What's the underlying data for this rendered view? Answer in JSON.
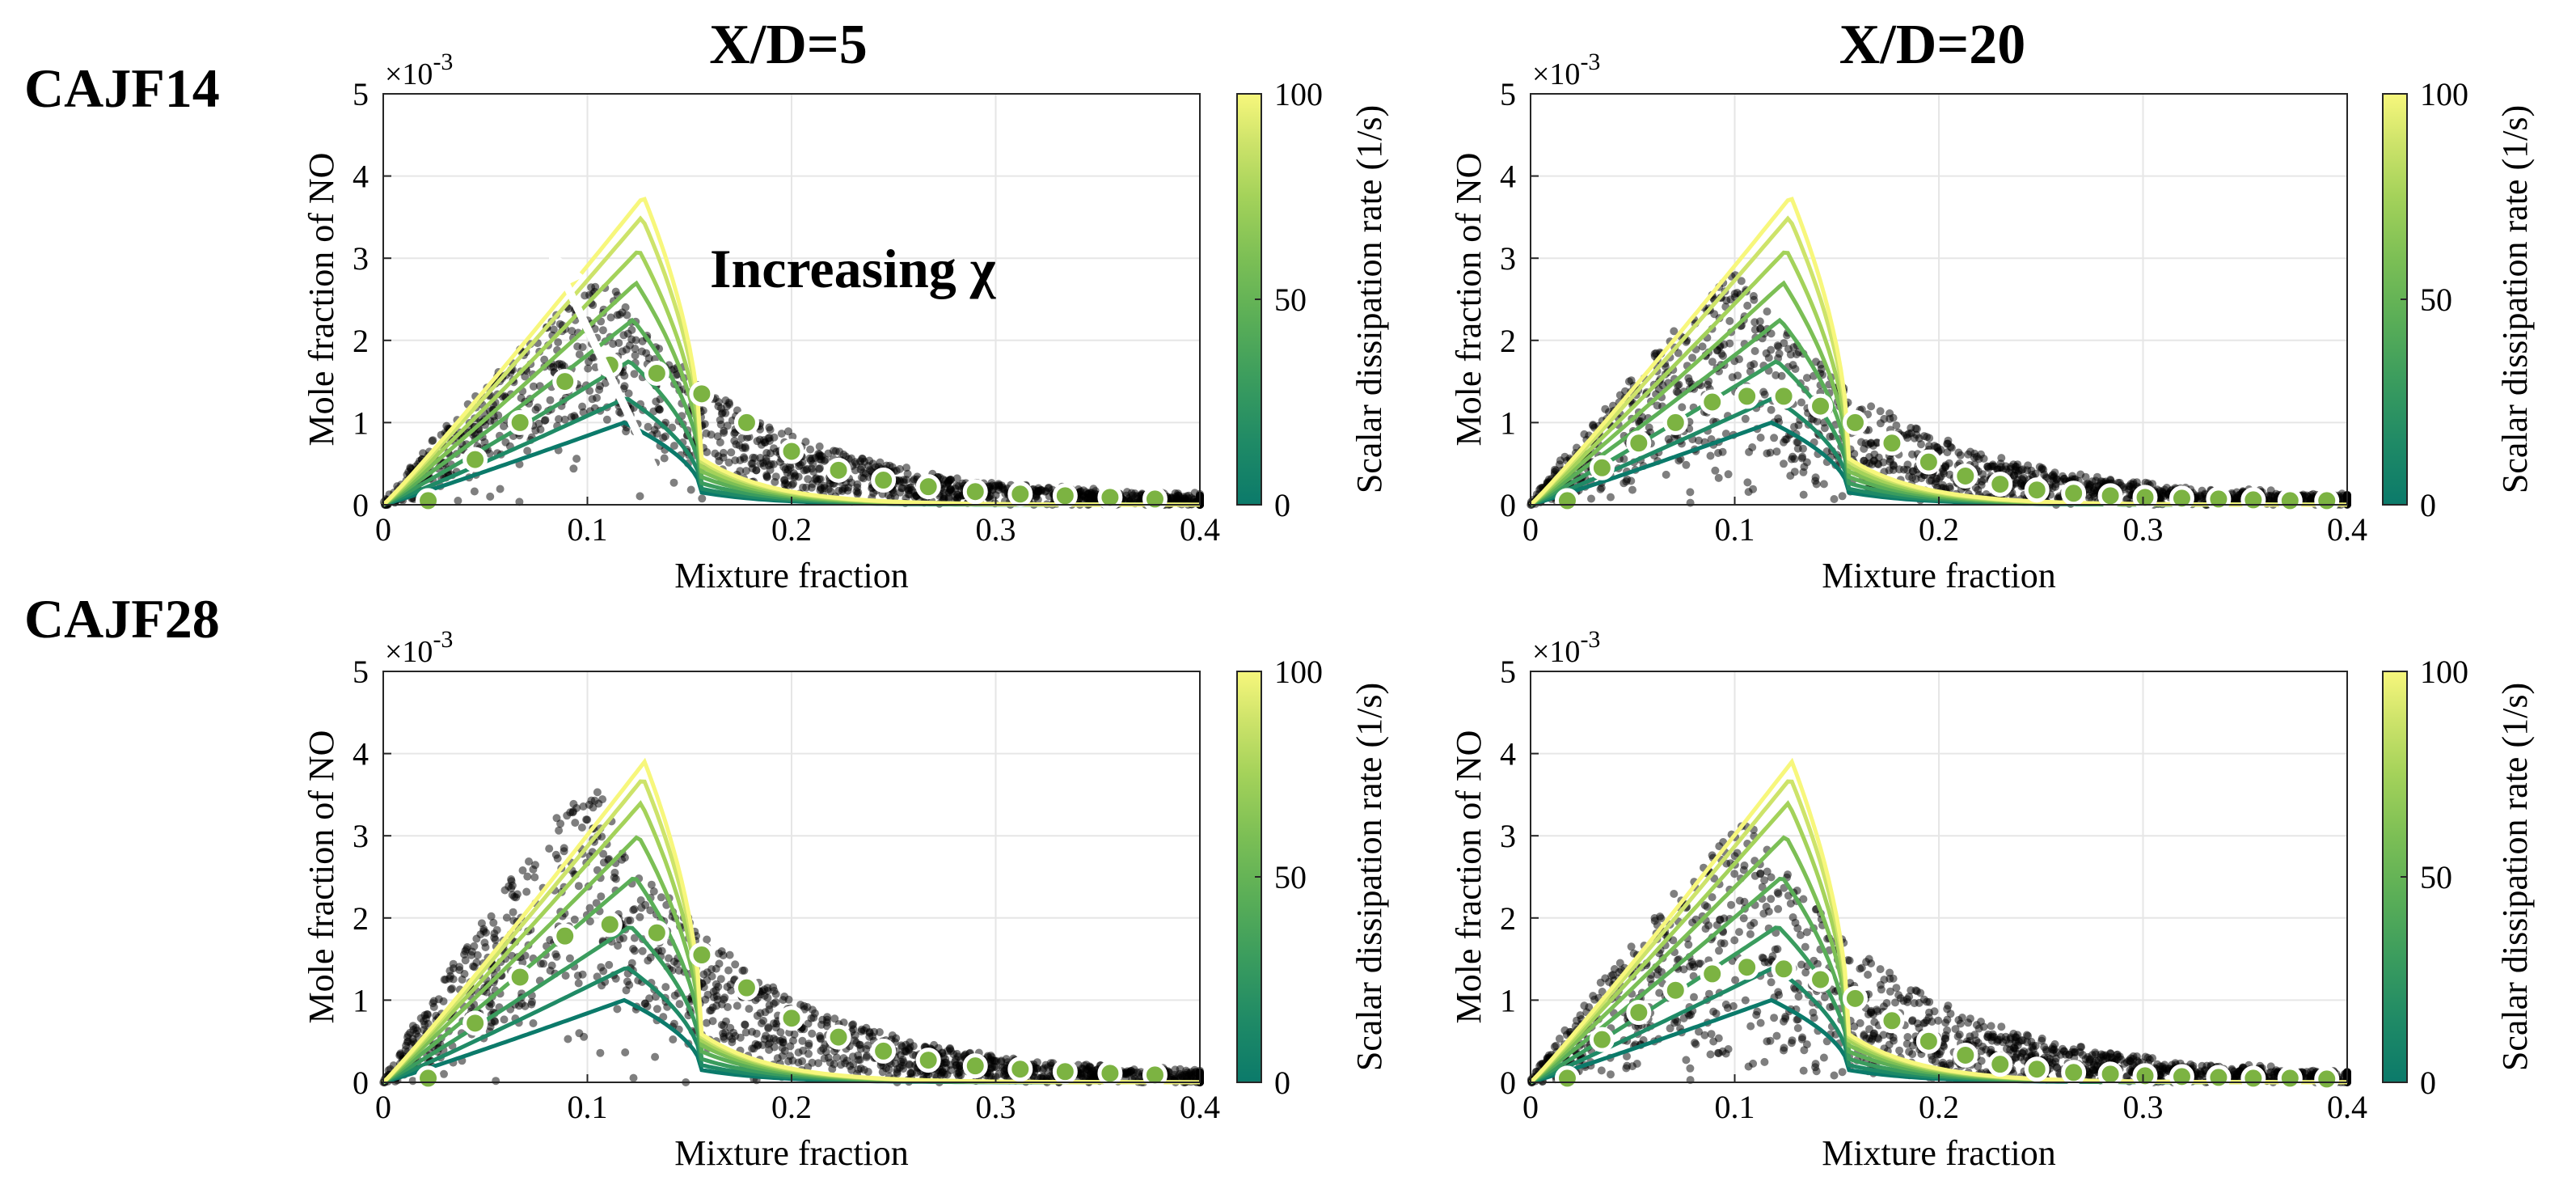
{
  "row_labels": [
    "CAJF14",
    "CAJF28"
  ],
  "column_titles": [
    "X/D=5",
    "X/D=20"
  ],
  "colors": {
    "colormap": [
      "#0b7a6a",
      "#1f8a66",
      "#3a9c5e",
      "#5aae57",
      "#7cbf55",
      "#a4d25a",
      "#cde36a",
      "#f7f77c"
    ],
    "marker_fill": "#7cb342",
    "marker_edge": "#ffffff",
    "scatter": "#000000",
    "arrow": "#ffffff"
  },
  "annotation": {
    "text": "Increasing χ",
    "panel": 0
  },
  "chart_data": [
    {
      "type": "scatter",
      "name": "CAJF14 X/D=5",
      "xlabel": "Mixture fraction",
      "ylabel": "Mole fraction of NO",
      "y_exponent_label": "×10",
      "y_exponent_power": "-3",
      "xlim": [
        0,
        0.4
      ],
      "ylim": [
        0,
        5
      ],
      "xticks": [
        "0",
        "0.1",
        "0.2",
        "0.3",
        "0.4"
      ],
      "yticks": [
        "0",
        "1",
        "2",
        "3",
        "4",
        "5"
      ],
      "colorbar": {
        "label": "Scalar dissipation rate  (1/s)",
        "range": [
          0,
          100
        ],
        "ticks": [
          "0",
          "50",
          "100"
        ]
      },
      "flamelet_peaks": [
        1.0,
        1.3,
        1.75,
        2.25,
        2.7,
        3.1,
        3.5,
        3.75
      ],
      "conditional_means": {
        "x": [
          0.022,
          0.045,
          0.067,
          0.089,
          0.111,
          0.134,
          0.156,
          0.178,
          0.2,
          0.223,
          0.245,
          0.267,
          0.29,
          0.312,
          0.334,
          0.356,
          0.378
        ],
        "y": [
          0.05,
          0.55,
          1.0,
          1.5,
          1.7,
          1.6,
          1.35,
          1.0,
          0.65,
          0.42,
          0.3,
          0.22,
          0.16,
          0.13,
          0.11,
          0.09,
          0.07
        ]
      },
      "scatter_envelope": {
        "peak_x": 0.105,
        "upper_peak": 2.85,
        "lower_peak": 1.1
      }
    },
    {
      "type": "scatter",
      "name": "CAJF14 X/D=20",
      "xlabel": "Mixture fraction",
      "ylabel": "Mole fraction of NO",
      "y_exponent_label": "×10",
      "y_exponent_power": "-3",
      "xlim": [
        0,
        0.4
      ],
      "ylim": [
        0,
        5
      ],
      "xticks": [
        "0",
        "0.1",
        "0.2",
        "0.3",
        "0.4"
      ],
      "yticks": [
        "0",
        "1",
        "2",
        "3",
        "4",
        "5"
      ],
      "colorbar": {
        "label": "Scalar dissipation rate  (1/s)",
        "range": [
          0,
          100
        ],
        "ticks": [
          "0",
          "50",
          "100"
        ]
      },
      "flamelet_peaks": [
        1.0,
        1.3,
        1.75,
        2.25,
        2.7,
        3.1,
        3.5,
        3.75
      ],
      "conditional_means": {
        "x": [
          0.018,
          0.035,
          0.053,
          0.071,
          0.089,
          0.106,
          0.124,
          0.142,
          0.159,
          0.177,
          0.195,
          0.213,
          0.23,
          0.248,
          0.266,
          0.284,
          0.301,
          0.319,
          0.337,
          0.354,
          0.372,
          0.39
        ],
        "y": [
          0.05,
          0.45,
          0.75,
          1.0,
          1.25,
          1.32,
          1.32,
          1.2,
          1.0,
          0.75,
          0.52,
          0.35,
          0.25,
          0.18,
          0.14,
          0.11,
          0.09,
          0.08,
          0.07,
          0.06,
          0.05,
          0.05
        ]
      },
      "scatter_envelope": {
        "peak_x": 0.1,
        "upper_peak": 2.9,
        "lower_peak": 0.6
      }
    },
    {
      "type": "scatter",
      "name": "CAJF28 X/D=5",
      "xlabel": "Mixture fraction",
      "ylabel": "Mole fraction of NO",
      "y_exponent_label": "×10",
      "y_exponent_power": "-3",
      "xlim": [
        0,
        0.4
      ],
      "ylim": [
        0,
        5
      ],
      "xticks": [
        "0",
        "0.1",
        "0.2",
        "0.3",
        "0.4"
      ],
      "yticks": [
        "0",
        "1",
        "2",
        "3",
        "4",
        "5"
      ],
      "colorbar": {
        "label": "Scalar dissipation rate  (1/s)",
        "range": [
          0,
          100
        ],
        "ticks": [
          "0",
          "50",
          "100"
        ]
      },
      "flamelet_peaks": [
        1.0,
        1.4,
        1.9,
        2.5,
        3.0,
        3.4,
        3.7,
        3.9
      ],
      "conditional_means": {
        "x": [
          0.022,
          0.045,
          0.067,
          0.089,
          0.111,
          0.134,
          0.156,
          0.178,
          0.2,
          0.223,
          0.245,
          0.267,
          0.29,
          0.312,
          0.334,
          0.356,
          0.378
        ],
        "y": [
          0.05,
          0.72,
          1.28,
          1.78,
          1.92,
          1.82,
          1.55,
          1.15,
          0.78,
          0.55,
          0.38,
          0.27,
          0.2,
          0.16,
          0.13,
          0.11,
          0.09
        ]
      },
      "scatter_envelope": {
        "peak_x": 0.1,
        "upper_peak": 3.75,
        "lower_peak": 1.2
      }
    },
    {
      "type": "scatter",
      "name": "CAJF28 X/D=20",
      "xlabel": "Mixture fraction",
      "ylabel": "Mole fraction of NO",
      "y_exponent_label": "×10",
      "y_exponent_power": "-3",
      "xlim": [
        0,
        0.4
      ],
      "ylim": [
        0,
        5
      ],
      "xticks": [
        "0",
        "0.1",
        "0.2",
        "0.3",
        "0.4"
      ],
      "yticks": [
        "0",
        "1",
        "2",
        "3",
        "4",
        "5"
      ],
      "colorbar": {
        "label": "Scalar dissipation rate  (1/s)",
        "range": [
          0,
          100
        ],
        "ticks": [
          "0",
          "50",
          "100"
        ]
      },
      "flamelet_peaks": [
        1.0,
        1.4,
        1.9,
        2.5,
        3.0,
        3.4,
        3.7,
        3.9
      ],
      "conditional_means": {
        "x": [
          0.018,
          0.035,
          0.053,
          0.071,
          0.089,
          0.106,
          0.124,
          0.142,
          0.159,
          0.177,
          0.195,
          0.213,
          0.23,
          0.248,
          0.266,
          0.284,
          0.301,
          0.319,
          0.337,
          0.354,
          0.372,
          0.39
        ],
        "y": [
          0.05,
          0.52,
          0.85,
          1.12,
          1.32,
          1.4,
          1.38,
          1.25,
          1.02,
          0.75,
          0.5,
          0.33,
          0.22,
          0.16,
          0.12,
          0.1,
          0.08,
          0.07,
          0.06,
          0.05,
          0.05,
          0.04
        ]
      },
      "scatter_envelope": {
        "peak_x": 0.105,
        "upper_peak": 3.3,
        "lower_peak": 0.3
      }
    }
  ]
}
